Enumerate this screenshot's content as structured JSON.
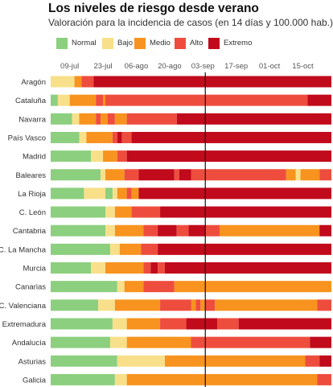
{
  "title": "Los niveles de riesgo desde verano",
  "subtitle": "Valoración para la incidencia de casos (en 14 días y 100.000 hab.)",
  "legend": [
    {
      "label": "Normal",
      "color": "#8ccf7e"
    },
    {
      "label": "Bajo",
      "color": "#f8e08a"
    },
    {
      "label": "Medio",
      "color": "#f7931e"
    },
    {
      "label": "Alto",
      "color": "#ee4d3e"
    },
    {
      "label": "Extremo",
      "color": "#c10a1c"
    }
  ],
  "chart_data": {
    "type": "bar",
    "xlabel": "",
    "ylabel": "",
    "x_axis": {
      "start": "2020-07-01",
      "end": "2020-10-27",
      "ticks": [
        "09-jul",
        "23-jul",
        "06-ago",
        "20-ago",
        "03-sep",
        "17-sep",
        "01-oct",
        "15-oct"
      ],
      "tick_dates": [
        "2020-07-09",
        "2020-07-23",
        "2020-08-06",
        "2020-08-20",
        "2020-09-03",
        "2020-09-17",
        "2020-10-01",
        "2020-10-15"
      ],
      "reference_line": "2020-09-04"
    },
    "levels": [
      "Normal",
      "Bajo",
      "Medio",
      "Alto",
      "Extremo"
    ],
    "categories": [
      "Aragón",
      "Cataluña",
      "Navarra",
      "País Vasco",
      "Madrid",
      "Baleares",
      "La Rioja",
      "C. León",
      "Cantabria",
      "C. La Mancha",
      "Murcia",
      "Canarias",
      "C. Valenciana",
      "Extremadura",
      "Andalucía",
      "Asturias",
      "Galicia"
    ],
    "series": [
      {
        "region": "Aragón",
        "segments": [
          [
            "Bajo",
            "2020-07-01",
            "2020-07-11"
          ],
          [
            "Medio",
            "2020-07-11",
            "2020-07-14"
          ],
          [
            "Alto",
            "2020-07-14",
            "2020-07-19"
          ],
          [
            "Extremo",
            "2020-07-19",
            "2020-10-27"
          ]
        ]
      },
      {
        "region": "Cataluña",
        "segments": [
          [
            "Normal",
            "2020-07-01",
            "2020-07-04"
          ],
          [
            "Bajo",
            "2020-07-04",
            "2020-07-09"
          ],
          [
            "Medio",
            "2020-07-09",
            "2020-07-20"
          ],
          [
            "Alto",
            "2020-07-20",
            "2020-07-23"
          ],
          [
            "Medio",
            "2020-07-23",
            "2020-07-24"
          ],
          [
            "Alto",
            "2020-07-24",
            "2020-10-17"
          ],
          [
            "Extremo",
            "2020-10-17",
            "2020-10-27"
          ]
        ]
      },
      {
        "region": "Navarra",
        "segments": [
          [
            "Normal",
            "2020-07-01",
            "2020-07-10"
          ],
          [
            "Bajo",
            "2020-07-10",
            "2020-07-13"
          ],
          [
            "Medio",
            "2020-07-13",
            "2020-07-20"
          ],
          [
            "Alto",
            "2020-07-20",
            "2020-07-22"
          ],
          [
            "Medio",
            "2020-07-22",
            "2020-07-25"
          ],
          [
            "Alto",
            "2020-07-25",
            "2020-07-28"
          ],
          [
            "Medio",
            "2020-07-28",
            "2020-08-02"
          ],
          [
            "Alto",
            "2020-08-02",
            "2020-08-23"
          ],
          [
            "Extremo",
            "2020-08-23",
            "2020-10-27"
          ]
        ]
      },
      {
        "region": "País Vasco",
        "segments": [
          [
            "Normal",
            "2020-07-01",
            "2020-07-13"
          ],
          [
            "Bajo",
            "2020-07-13",
            "2020-07-16"
          ],
          [
            "Medio",
            "2020-07-16",
            "2020-07-27"
          ],
          [
            "Alto",
            "2020-07-27",
            "2020-07-29"
          ],
          [
            "Extremo",
            "2020-07-29",
            "2020-07-31"
          ],
          [
            "Alto",
            "2020-07-31",
            "2020-08-04"
          ],
          [
            "Extremo",
            "2020-08-04",
            "2020-10-27"
          ]
        ]
      },
      {
        "region": "Madrid",
        "segments": [
          [
            "Normal",
            "2020-07-01",
            "2020-07-18"
          ],
          [
            "Bajo",
            "2020-07-18",
            "2020-07-23"
          ],
          [
            "Medio",
            "2020-07-23",
            "2020-07-29"
          ],
          [
            "Alto",
            "2020-07-29",
            "2020-08-02"
          ],
          [
            "Extremo",
            "2020-08-02",
            "2020-10-27"
          ]
        ]
      },
      {
        "region": "Baleares",
        "segments": [
          [
            "Normal",
            "2020-07-01",
            "2020-07-22"
          ],
          [
            "Bajo",
            "2020-07-22",
            "2020-07-24"
          ],
          [
            "Medio",
            "2020-07-24",
            "2020-08-01"
          ],
          [
            "Alto",
            "2020-08-01",
            "2020-08-07"
          ],
          [
            "Extremo",
            "2020-08-07",
            "2020-08-22"
          ],
          [
            "Alto",
            "2020-08-22",
            "2020-08-24"
          ],
          [
            "Extremo",
            "2020-08-24",
            "2020-08-29"
          ],
          [
            "Alto",
            "2020-08-29",
            "2020-10-08"
          ],
          [
            "Medio",
            "2020-10-08",
            "2020-10-12"
          ],
          [
            "Bajo",
            "2020-10-12",
            "2020-10-14"
          ],
          [
            "Medio",
            "2020-10-14",
            "2020-10-22"
          ],
          [
            "Alto",
            "2020-10-22",
            "2020-10-27"
          ]
        ]
      },
      {
        "region": "La Rioja",
        "segments": [
          [
            "Normal",
            "2020-07-01",
            "2020-07-15"
          ],
          [
            "Bajo",
            "2020-07-15",
            "2020-07-24"
          ],
          [
            "Normal",
            "2020-07-24",
            "2020-07-27"
          ],
          [
            "Bajo",
            "2020-07-27",
            "2020-07-29"
          ],
          [
            "Medio",
            "2020-07-29",
            "2020-08-02"
          ],
          [
            "Alto",
            "2020-08-02",
            "2020-08-04"
          ],
          [
            "Medio",
            "2020-08-04",
            "2020-08-07"
          ],
          [
            "Extremo",
            "2020-08-07",
            "2020-10-27"
          ]
        ]
      },
      {
        "region": "C. León",
        "segments": [
          [
            "Normal",
            "2020-07-01",
            "2020-07-24"
          ],
          [
            "Bajo",
            "2020-07-24",
            "2020-07-28"
          ],
          [
            "Medio",
            "2020-07-28",
            "2020-08-04"
          ],
          [
            "Alto",
            "2020-08-04",
            "2020-08-16"
          ],
          [
            "Extremo",
            "2020-08-16",
            "2020-10-27"
          ]
        ]
      },
      {
        "region": "Cantabria",
        "segments": [
          [
            "Normal",
            "2020-07-01",
            "2020-07-24"
          ],
          [
            "Bajo",
            "2020-07-24",
            "2020-07-28"
          ],
          [
            "Medio",
            "2020-07-28",
            "2020-08-09"
          ],
          [
            "Alto",
            "2020-08-09",
            "2020-08-15"
          ],
          [
            "Extremo",
            "2020-08-15",
            "2020-08-23"
          ],
          [
            "Alto",
            "2020-08-23",
            "2020-08-28"
          ],
          [
            "Extremo",
            "2020-08-28",
            "2020-09-04"
          ],
          [
            "Alto",
            "2020-09-04",
            "2020-09-10"
          ],
          [
            "Medio",
            "2020-09-10",
            "2020-10-22"
          ],
          [
            "Extremo",
            "2020-10-22",
            "2020-10-27"
          ]
        ]
      },
      {
        "region": "C. La Mancha",
        "segments": [
          [
            "Normal",
            "2020-07-01",
            "2020-07-26"
          ],
          [
            "Bajo",
            "2020-07-26",
            "2020-07-30"
          ],
          [
            "Medio",
            "2020-07-30",
            "2020-08-08"
          ],
          [
            "Alto",
            "2020-08-08",
            "2020-08-15"
          ],
          [
            "Extremo",
            "2020-08-15",
            "2020-10-27"
          ]
        ]
      },
      {
        "region": "Murcia",
        "segments": [
          [
            "Normal",
            "2020-07-01",
            "2020-07-18"
          ],
          [
            "Bajo",
            "2020-07-18",
            "2020-07-24"
          ],
          [
            "Medio",
            "2020-07-24",
            "2020-08-09"
          ],
          [
            "Alto",
            "2020-08-09",
            "2020-08-12"
          ],
          [
            "Extremo",
            "2020-08-12",
            "2020-08-15"
          ],
          [
            "Alto",
            "2020-08-15",
            "2020-08-18"
          ],
          [
            "Extremo",
            "2020-08-18",
            "2020-10-27"
          ]
        ]
      },
      {
        "region": "Canarias",
        "segments": [
          [
            "Normal",
            "2020-07-01",
            "2020-07-29"
          ],
          [
            "Bajo",
            "2020-07-29",
            "2020-08-01"
          ],
          [
            "Medio",
            "2020-08-01",
            "2020-08-09"
          ],
          [
            "Alto",
            "2020-08-09",
            "2020-08-22"
          ],
          [
            "Medio",
            "2020-08-22",
            "2020-10-27"
          ]
        ]
      },
      {
        "region": "C. Valenciana",
        "segments": [
          [
            "Normal",
            "2020-07-01",
            "2020-07-21"
          ],
          [
            "Bajo",
            "2020-07-21",
            "2020-07-28"
          ],
          [
            "Medio",
            "2020-07-28",
            "2020-08-16"
          ],
          [
            "Alto",
            "2020-08-16",
            "2020-08-29"
          ],
          [
            "Medio",
            "2020-08-29",
            "2020-08-31"
          ],
          [
            "Alto",
            "2020-08-31",
            "2020-09-02"
          ],
          [
            "Medio",
            "2020-09-02",
            "2020-09-04"
          ],
          [
            "Alto",
            "2020-09-04",
            "2020-09-08"
          ],
          [
            "Medio",
            "2020-09-08",
            "2020-10-21"
          ],
          [
            "Alto",
            "2020-10-21",
            "2020-10-27"
          ]
        ]
      },
      {
        "region": "Extremadura",
        "segments": [
          [
            "Normal",
            "2020-07-01",
            "2020-07-27"
          ],
          [
            "Bajo",
            "2020-07-27",
            "2020-08-02"
          ],
          [
            "Medio",
            "2020-08-02",
            "2020-08-16"
          ],
          [
            "Alto",
            "2020-08-16",
            "2020-08-27"
          ],
          [
            "Extremo",
            "2020-08-27",
            "2020-09-09"
          ],
          [
            "Alto",
            "2020-09-09",
            "2020-09-18"
          ],
          [
            "Extremo",
            "2020-09-18",
            "2020-10-27"
          ]
        ]
      },
      {
        "region": "Andalucía",
        "segments": [
          [
            "Normal",
            "2020-07-01",
            "2020-07-26"
          ],
          [
            "Bajo",
            "2020-07-26",
            "2020-08-02"
          ],
          [
            "Medio",
            "2020-08-02",
            "2020-08-29"
          ],
          [
            "Alto",
            "2020-08-29",
            "2020-10-18"
          ],
          [
            "Extremo",
            "2020-10-18",
            "2020-10-27"
          ]
        ]
      },
      {
        "region": "Asturias",
        "segments": [
          [
            "Normal",
            "2020-07-01",
            "2020-07-29"
          ],
          [
            "Bajo",
            "2020-07-29",
            "2020-08-18"
          ],
          [
            "Medio",
            "2020-08-18",
            "2020-10-16"
          ],
          [
            "Alto",
            "2020-10-16",
            "2020-10-22"
          ],
          [
            "Extremo",
            "2020-10-22",
            "2020-10-27"
          ]
        ]
      },
      {
        "region": "Galicia",
        "segments": [
          [
            "Normal",
            "2020-07-01",
            "2020-07-28"
          ],
          [
            "Bajo",
            "2020-07-28",
            "2020-08-02"
          ],
          [
            "Medio",
            "2020-08-02",
            "2020-10-21"
          ],
          [
            "Alto",
            "2020-10-21",
            "2020-10-27"
          ]
        ]
      }
    ]
  }
}
